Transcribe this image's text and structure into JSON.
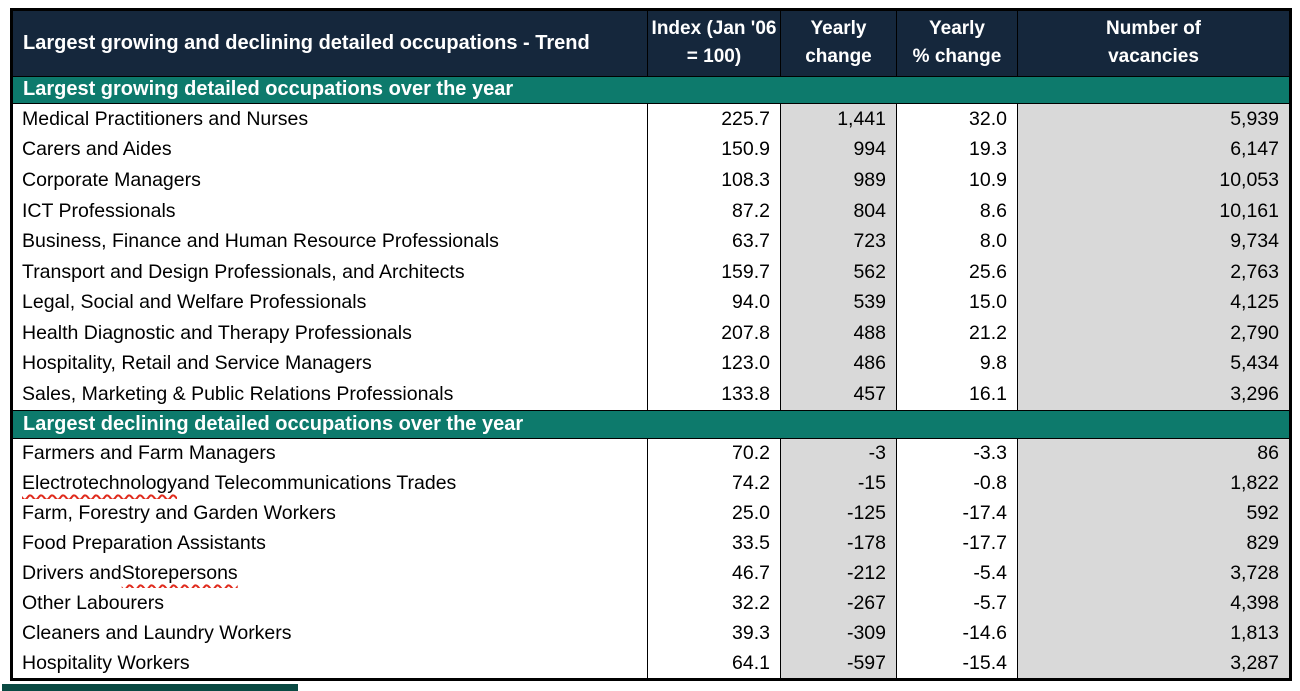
{
  "table": {
    "title": "Largest growing and declining detailed occupations - Trend",
    "columns": [
      {
        "line1": "Index (Jan '06",
        "line2": "= 100)"
      },
      {
        "line1": "Yearly",
        "line2": "change"
      },
      {
        "line1": "Yearly",
        "line2": "% change"
      },
      {
        "line1": "Number of",
        "line2": "vacancies"
      }
    ],
    "sections": [
      {
        "header": "Largest growing detailed occupations over the year",
        "rows": [
          {
            "name": "Medical Practitioners and Nurses",
            "index": "225.7",
            "yearly_change": "1,441",
            "yearly_pct_change": "32.0",
            "vacancies": "5,939"
          },
          {
            "name": "Carers and Aides",
            "index": "150.9",
            "yearly_change": "994",
            "yearly_pct_change": "19.3",
            "vacancies": "6,147"
          },
          {
            "name": "Corporate Managers",
            "index": "108.3",
            "yearly_change": "989",
            "yearly_pct_change": "10.9",
            "vacancies": "10,053"
          },
          {
            "name": "ICT Professionals",
            "index": "87.2",
            "yearly_change": "804",
            "yearly_pct_change": "8.6",
            "vacancies": "10,161"
          },
          {
            "name": "Business, Finance and Human Resource Professionals",
            "index": "63.7",
            "yearly_change": "723",
            "yearly_pct_change": "8.0",
            "vacancies": "9,734"
          },
          {
            "name": "Transport and Design Professionals, and Architects",
            "index": "159.7",
            "yearly_change": "562",
            "yearly_pct_change": "25.6",
            "vacancies": "2,763"
          },
          {
            "name": "Legal, Social and Welfare Professionals",
            "index": "94.0",
            "yearly_change": "539",
            "yearly_pct_change": "15.0",
            "vacancies": "4,125"
          },
          {
            "name": "Health Diagnostic and Therapy Professionals",
            "index": "207.8",
            "yearly_change": "488",
            "yearly_pct_change": "21.2",
            "vacancies": "2,790"
          },
          {
            "name": "Hospitality, Retail and Service Managers",
            "index": "123.0",
            "yearly_change": "486",
            "yearly_pct_change": "9.8",
            "vacancies": "5,434"
          },
          {
            "name": "Sales, Marketing & Public Relations Professionals",
            "index": "133.8",
            "yearly_change": "457",
            "yearly_pct_change": "16.1",
            "vacancies": "3,296"
          }
        ]
      },
      {
        "header": "Largest declining detailed occupations over the year",
        "rows": [
          {
            "name": "Farmers and Farm Managers",
            "index": "70.2",
            "yearly_change": "-3",
            "yearly_pct_change": "-3.3",
            "vacancies": "86"
          },
          {
            "name": "Electrotechnology and Telecommunications Trades",
            "misspelled_word": "Electrotechnology",
            "index": "74.2",
            "yearly_change": "-15",
            "yearly_pct_change": "-0.8",
            "vacancies": "1,822"
          },
          {
            "name": "Farm, Forestry and Garden Workers",
            "index": "25.0",
            "yearly_change": "-125",
            "yearly_pct_change": "-17.4",
            "vacancies": "592"
          },
          {
            "name": "Food Preparation Assistants",
            "index": "33.5",
            "yearly_change": "-178",
            "yearly_pct_change": "-17.7",
            "vacancies": "829"
          },
          {
            "name": "Drivers and Storepersons",
            "misspelled_word": "Storepersons",
            "index": "46.7",
            "yearly_change": "-212",
            "yearly_pct_change": "-5.4",
            "vacancies": "3,728"
          },
          {
            "name": "Other Labourers",
            "index": "32.2",
            "yearly_change": "-267",
            "yearly_pct_change": "-5.7",
            "vacancies": "4,398"
          },
          {
            "name": "Cleaners and Laundry Workers",
            "index": "39.3",
            "yearly_change": "-309",
            "yearly_pct_change": "-14.6",
            "vacancies": "1,813"
          },
          {
            "name": "Hospitality Workers",
            "index": "64.1",
            "yearly_change": "-597",
            "yearly_pct_change": "-15.4",
            "vacancies": "3,287"
          }
        ]
      }
    ],
    "colors": {
      "title_bg": "#15273c",
      "section_bg": "#0d7a6c",
      "grey_column_bg": "#d9d9d9",
      "border": "#000000",
      "spellcheck_squiggle": "#e02b1d"
    }
  }
}
